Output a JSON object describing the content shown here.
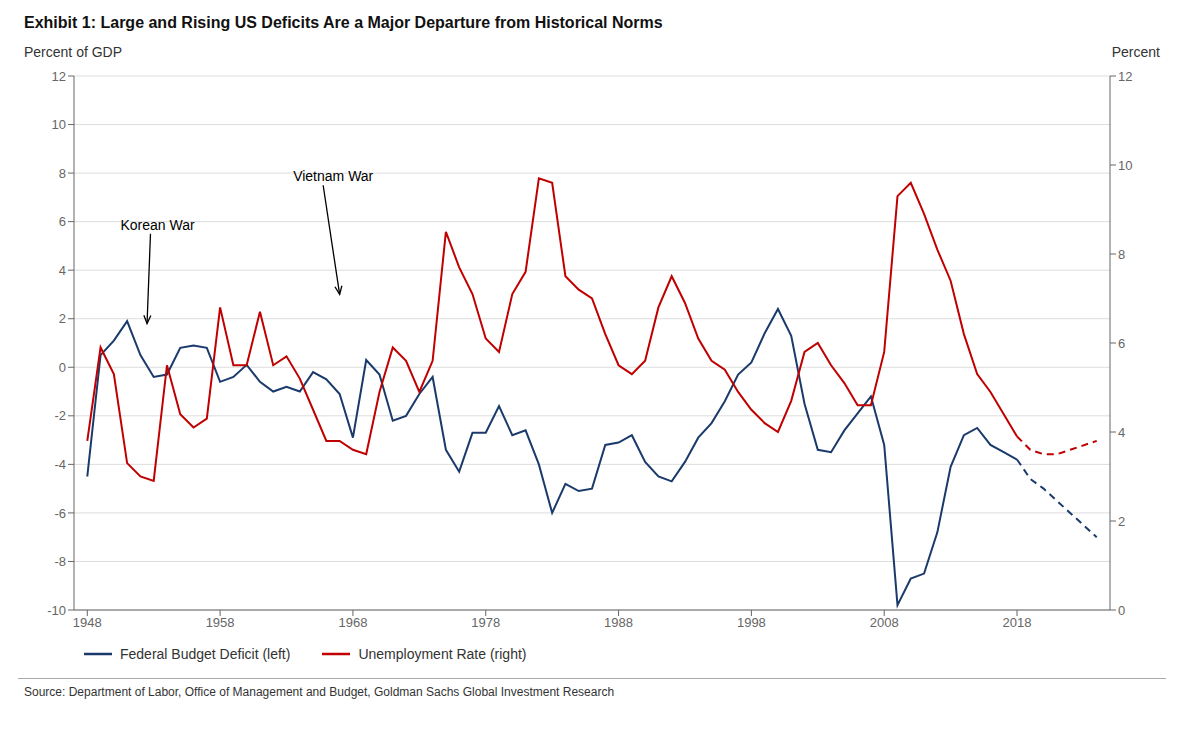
{
  "chart_data": {
    "type": "line",
    "title": "Exhibit 1: Large and Rising US Deficits Are a Major Departure from Historical Norms",
    "ylabel": "Percent of GDP",
    "y2label": "Percent",
    "source": "Source: Department of Labor, Office of Management and Budget, Goldman Sachs Global Investment Research",
    "xlim": [
      1947,
      2025
    ],
    "xticks": [
      1948,
      1958,
      1968,
      1978,
      1988,
      1998,
      2008,
      2018
    ],
    "ylim": [
      -10,
      12
    ],
    "yticks": [
      -10,
      -8,
      -6,
      -4,
      -2,
      0,
      2,
      4,
      6,
      8,
      10,
      12
    ],
    "y2lim": [
      0,
      12
    ],
    "y2ticks": [
      0,
      2,
      4,
      6,
      8,
      10,
      12
    ],
    "grid": true,
    "legend": "bottom",
    "annotations": [
      {
        "text": "Korean War",
        "x": 1950.5,
        "y": 5.5,
        "arrow_x": 1952.5,
        "arrow_y": 1.8
      },
      {
        "text": "Vietnam War",
        "x": 1963.5,
        "y": 7.5,
        "arrow_x": 1967.0,
        "arrow_y": 3.0
      }
    ],
    "series": [
      {
        "name": "Federal Budget Deficit (left)",
        "color": "#1a3a6b",
        "axis": "y",
        "line_style": "solid",
        "x": [
          1948,
          1949,
          1950,
          1951,
          1952,
          1953,
          1954,
          1955,
          1956,
          1957,
          1958,
          1959,
          1960,
          1961,
          1962,
          1963,
          1964,
          1965,
          1966,
          1967,
          1968,
          1969,
          1970,
          1971,
          1972,
          1973,
          1974,
          1975,
          1976,
          1977,
          1978,
          1979,
          1980,
          1981,
          1982,
          1983,
          1984,
          1985,
          1986,
          1987,
          1988,
          1989,
          1990,
          1991,
          1992,
          1993,
          1994,
          1995,
          1996,
          1997,
          1998,
          1999,
          2000,
          2001,
          2002,
          2003,
          2004,
          2005,
          2006,
          2007,
          2008,
          2009,
          2010,
          2011,
          2012,
          2013,
          2014,
          2015,
          2016,
          2017,
          2018
        ],
        "values": [
          -4.5,
          0.5,
          1.1,
          1.9,
          0.5,
          -0.4,
          -0.3,
          0.8,
          0.9,
          0.8,
          -0.6,
          -0.4,
          0.1,
          -0.6,
          -1.0,
          -0.8,
          -1.0,
          -0.2,
          -0.5,
          -1.1,
          -2.9,
          0.3,
          -0.3,
          -2.2,
          -2.0,
          -1.1,
          -0.4,
          -3.4,
          -4.3,
          -2.7,
          -2.7,
          -1.6,
          -2.8,
          -2.6,
          -4.0,
          -6.0,
          -4.8,
          -5.1,
          -5.0,
          -3.2,
          -3.1,
          -2.8,
          -3.9,
          -4.5,
          -4.7,
          -3.9,
          -2.9,
          -2.3,
          -1.4,
          -0.3,
          0.2,
          1.4,
          2.4,
          1.3,
          -1.5,
          -3.4,
          -3.5,
          -2.6,
          -1.9,
          -1.2,
          -3.2,
          -9.8,
          -8.7,
          -8.5,
          -6.8,
          -4.1,
          -2.8,
          -2.5,
          -3.2,
          -3.5,
          -3.8
        ],
        "forecast": {
          "line_style": "dashed",
          "x": [
            2018,
            2019,
            2020,
            2021,
            2022,
            2023,
            2024
          ],
          "values": [
            -3.8,
            -4.6,
            -5.0,
            -5.5,
            -6.0,
            -6.5,
            -7.0
          ]
        }
      },
      {
        "name": "Unemployment Rate (right)",
        "color": "#c00000",
        "axis": "y2",
        "line_style": "solid",
        "x": [
          1948,
          1949,
          1950,
          1951,
          1952,
          1953,
          1954,
          1955,
          1956,
          1957,
          1958,
          1959,
          1960,
          1961,
          1962,
          1963,
          1964,
          1965,
          1966,
          1967,
          1968,
          1969,
          1970,
          1971,
          1972,
          1973,
          1974,
          1975,
          1976,
          1977,
          1978,
          1979,
          1980,
          1981,
          1982,
          1983,
          1984,
          1985,
          1986,
          1987,
          1988,
          1989,
          1990,
          1991,
          1992,
          1993,
          1994,
          1995,
          1996,
          1997,
          1998,
          1999,
          2000,
          2001,
          2002,
          2003,
          2004,
          2005,
          2006,
          2007,
          2008,
          2009,
          2010,
          2011,
          2012,
          2013,
          2014,
          2015,
          2016,
          2017,
          2018
        ],
        "values": [
          3.8,
          5.9,
          5.3,
          3.3,
          3.0,
          2.9,
          5.5,
          4.4,
          4.1,
          4.3,
          6.8,
          5.5,
          5.5,
          6.7,
          5.5,
          5.7,
          5.2,
          4.5,
          3.8,
          3.8,
          3.6,
          3.5,
          4.9,
          5.9,
          5.6,
          4.9,
          5.6,
          8.5,
          7.7,
          7.1,
          6.1,
          5.8,
          7.1,
          7.6,
          9.7,
          9.6,
          7.5,
          7.2,
          7.0,
          6.2,
          5.5,
          5.3,
          5.6,
          6.8,
          7.5,
          6.9,
          6.1,
          5.6,
          5.4,
          4.9,
          4.5,
          4.2,
          4.0,
          4.7,
          5.8,
          6.0,
          5.5,
          5.1,
          4.6,
          4.6,
          5.8,
          9.3,
          9.6,
          8.9,
          8.1,
          7.4,
          6.2,
          5.3,
          4.9,
          4.4,
          3.9
        ],
        "forecast": {
          "line_style": "dashed",
          "x": [
            2018,
            2019,
            2020,
            2021,
            2022,
            2023,
            2024
          ],
          "values": [
            3.9,
            3.6,
            3.5,
            3.5,
            3.6,
            3.7,
            3.8
          ]
        }
      }
    ]
  }
}
